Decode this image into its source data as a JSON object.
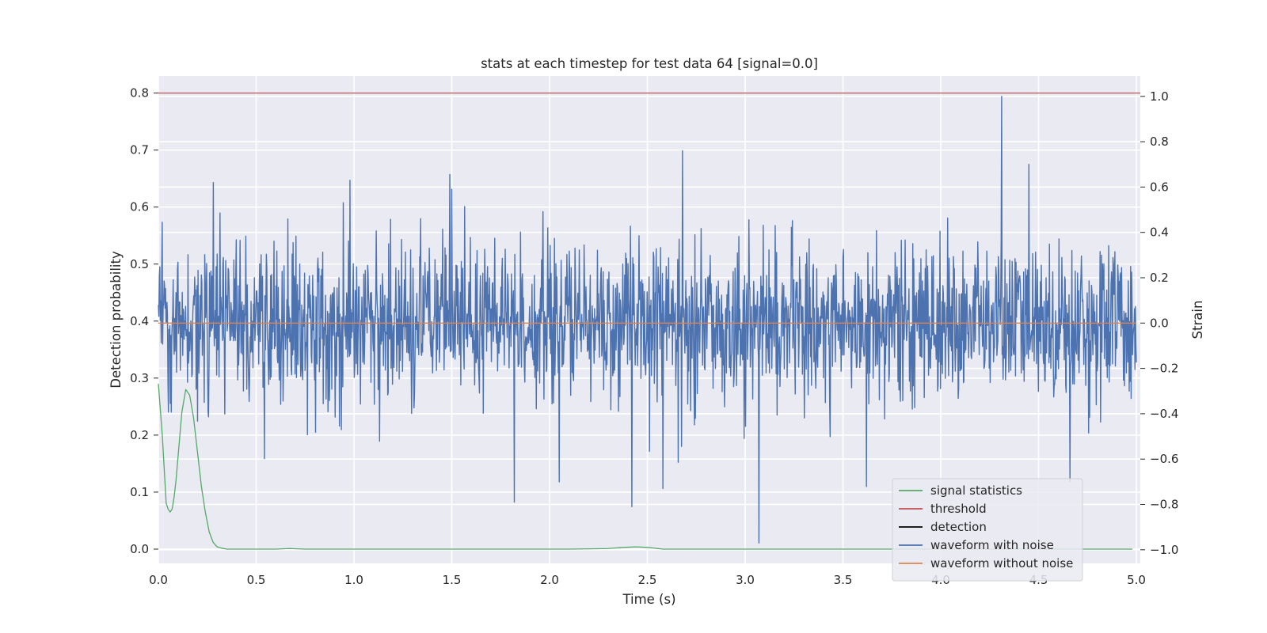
{
  "chart_data": {
    "type": "line",
    "title": "stats at each timestep for test data 64 [signal=0.0]",
    "xlabel": "Time (s)",
    "ylabel": "Detection probability",
    "y2label": "Strain",
    "xlim": [
      0.0,
      5.02
    ],
    "ylim": [
      -0.025,
      0.83
    ],
    "y2lim": [
      -1.06,
      1.09
    ],
    "xticks": [
      "0.0",
      "0.5",
      "1.0",
      "1.5",
      "2.0",
      "2.5",
      "3.0",
      "3.5",
      "4.0",
      "4.5",
      "5.0"
    ],
    "xtick_values": [
      0.0,
      0.5,
      1.0,
      1.5,
      2.0,
      2.5,
      3.0,
      3.5,
      4.0,
      4.5,
      5.0
    ],
    "yticks": [
      "0.0",
      "0.1",
      "0.2",
      "0.3",
      "0.4",
      "0.5",
      "0.6",
      "0.7",
      "0.8"
    ],
    "ytick_values": [
      0.0,
      0.1,
      0.2,
      0.3,
      0.4,
      0.5,
      0.6,
      0.7,
      0.8
    ],
    "y2ticks": [
      "−1.0",
      "−0.8",
      "−0.6",
      "−0.4",
      "−0.2",
      "0.0",
      "0.2",
      "0.4",
      "0.6",
      "0.8",
      "1.0"
    ],
    "y2tick_values": [
      -1.0,
      -0.8,
      -0.6,
      -0.4,
      -0.2,
      0.0,
      0.2,
      0.4,
      0.6,
      0.8,
      1.0
    ],
    "grid": true,
    "legend_position": "lower-right",
    "series": [
      {
        "name": "signal statistics",
        "axis": "left",
        "color": "#55a868",
        "x": [
          0.0,
          0.02,
          0.04,
          0.05,
          0.06,
          0.07,
          0.08,
          0.09,
          0.1,
          0.12,
          0.14,
          0.16,
          0.18,
          0.2,
          0.22,
          0.24,
          0.26,
          0.28,
          0.3,
          0.32,
          0.35,
          0.4,
          0.5,
          0.6,
          0.67,
          0.75,
          0.9,
          1.2,
          1.5,
          1.8,
          2.1,
          2.3,
          2.38,
          2.44,
          2.5,
          2.58,
          2.8,
          3.2,
          3.6,
          4.0,
          4.4,
          4.8,
          4.98
        ],
        "y": [
          0.29,
          0.2,
          0.08,
          0.07,
          0.065,
          0.07,
          0.09,
          0.12,
          0.16,
          0.24,
          0.28,
          0.27,
          0.23,
          0.17,
          0.11,
          0.065,
          0.03,
          0.012,
          0.004,
          0.002,
          0.0,
          0.0,
          0.0,
          0.0,
          0.001,
          0.0,
          0.0,
          0.0,
          0.0,
          0.0,
          0.0,
          0.001,
          0.003,
          0.004,
          0.003,
          0.0,
          0.0,
          0.0,
          0.0,
          0.0,
          0.0,
          0.0,
          0.0
        ]
      },
      {
        "name": "threshold",
        "axis": "left",
        "color": "#c44e52",
        "x": [
          0.0,
          5.02
        ],
        "y": [
          0.8,
          0.8
        ]
      },
      {
        "name": "detection",
        "axis": "left",
        "color": "#000000",
        "x": [],
        "y": []
      },
      {
        "name": "waveform with noise",
        "axis": "right",
        "color": "#4c72b0",
        "x_range": [
          0.0,
          5.0
        ],
        "sample_count": 2048,
        "typical_amplitude": 0.3,
        "peaks": [
          {
            "x": 4.31,
            "y": 1.0
          },
          {
            "x": 3.07,
            "y": -0.97
          },
          {
            "x": 4.45,
            "y": 0.7
          },
          {
            "x": 0.28,
            "y": 0.62
          },
          {
            "x": 0.98,
            "y": 0.63
          },
          {
            "x": 1.82,
            "y": -0.79
          },
          {
            "x": 2.42,
            "y": -0.81
          },
          {
            "x": 2.58,
            "y": -0.73
          },
          {
            "x": 1.5,
            "y": 0.59
          },
          {
            "x": 4.66,
            "y": -0.7
          }
        ]
      },
      {
        "name": "waveform without noise",
        "axis": "right",
        "color": "#dd8452",
        "x": [
          0.0,
          5.0
        ],
        "y": [
          0.0,
          0.0
        ]
      }
    ]
  }
}
